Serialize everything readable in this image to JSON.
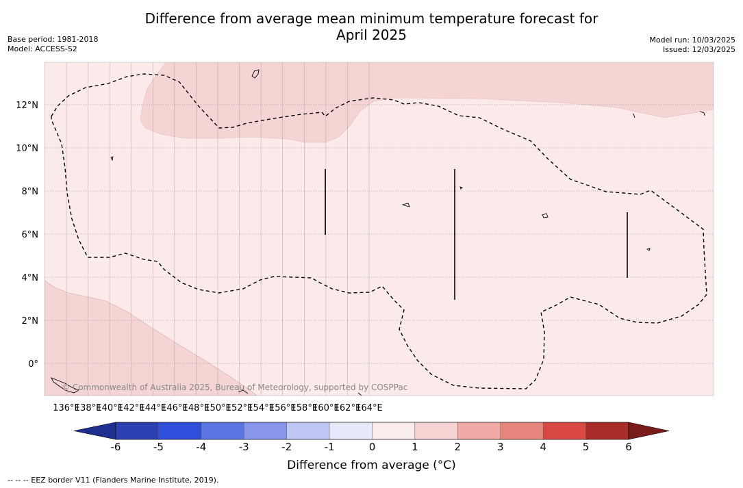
{
  "title": {
    "line1": "Difference from average mean minimum temperature forecast for",
    "line2": "April 2025"
  },
  "meta": {
    "base_period": "Base period: 1981-2018",
    "model": "Model: ACCESS-S2",
    "model_run": "Model run: 10/03/2025",
    "issued": "Issued: 12/03/2025"
  },
  "map": {
    "lon_ticks": [
      "136°E",
      "138°E",
      "140°E",
      "142°E",
      "144°E",
      "146°E",
      "148°E",
      "150°E",
      "152°E",
      "154°E",
      "156°E",
      "158°E",
      "160°E",
      "162°E",
      "164°E"
    ],
    "lat_ticks": [
      "12°N",
      "10°N",
      "8°N",
      "6°N",
      "4°N",
      "2°N",
      "0°"
    ],
    "copyright": "© Commonwealth of Australia 2025, Bureau of Meteorology, supported by COSPPac",
    "colors": {
      "class_0_1": "#fbeae9",
      "class_1_2": "#f5d5d4",
      "eez_line": "#000000",
      "grid": "#777777"
    }
  },
  "colorbar": {
    "tick_labels": [
      "-6",
      "-5",
      "-4",
      "-3",
      "-2",
      "-1",
      "0",
      "1",
      "2",
      "3",
      "4",
      "5",
      "6"
    ],
    "colors": [
      "#1f2f8f",
      "#2b40b0",
      "#2e4fdb",
      "#5a75e2",
      "#8796ea",
      "#c0c7f4",
      "#e7eafb",
      "#fbecec",
      "#f5d3d3",
      "#efaaa5",
      "#e6867d",
      "#d94841",
      "#a92c28",
      "#7a1b1b"
    ],
    "label": "Difference from average (°C)"
  },
  "footnote": "--  --  -- EEZ border V11 (Flanders Marine Institute, 2019)."
}
